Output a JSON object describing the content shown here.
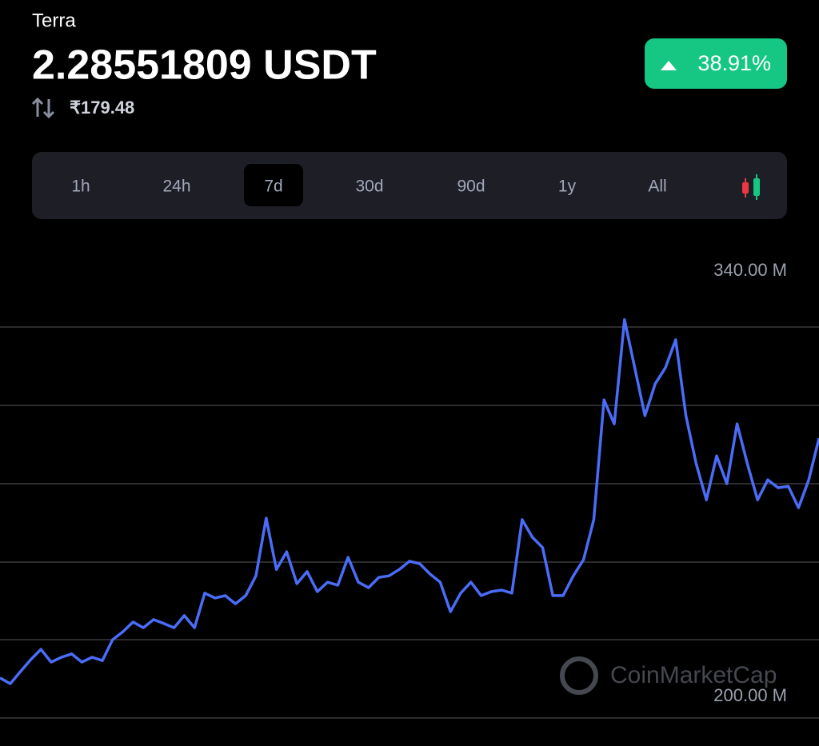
{
  "header": {
    "name": "Terra",
    "price": "2.28551809 USDT",
    "fiat_price": "₹179.48",
    "change": "38.91%"
  },
  "tabs": [
    "1h",
    "24h",
    "7d",
    "30d",
    "90d",
    "1y",
    "All"
  ],
  "chart_data": {
    "type": "line",
    "color": "#4a6cf7",
    "watermark": "CoinMarketCap",
    "ylim": [
      200,
      340
    ],
    "yticks": [
      {
        "value": 340,
        "label": "340.00 M"
      },
      {
        "value": 200,
        "label": "200.00 M"
      }
    ],
    "values": [
      213.2,
      211.3,
      215.3,
      219.2,
      222.6,
      218.4,
      220.0,
      221.1,
      218.4,
      220.0,
      218.9,
      225.8,
      228.4,
      231.6,
      229.7,
      232.4,
      231.1,
      229.7,
      233.7,
      229.7,
      241.1,
      239.5,
      240.3,
      237.6,
      240.3,
      246.8,
      265.8,
      248.9,
      254.7,
      244.2,
      248.2,
      241.6,
      244.7,
      243.7,
      252.9,
      244.7,
      242.9,
      246.3,
      246.8,
      248.9,
      251.6,
      250.8,
      247.4,
      244.7,
      235.0,
      241.1,
      244.7,
      240.3,
      241.6,
      242.1,
      241.1,
      265.3,
      259.5,
      256.1,
      240.3,
      240.3,
      246.8,
      252.1,
      265.3,
      304.7,
      296.8,
      331.1,
      315.3,
      299.5,
      310.0,
      315.3,
      324.5,
      299.5,
      283.7,
      271.8,
      286.3,
      277.1,
      296.8,
      283.7,
      271.8,
      278.4,
      275.8,
      276.3,
      269.2,
      278.4,
      292.1
    ]
  }
}
